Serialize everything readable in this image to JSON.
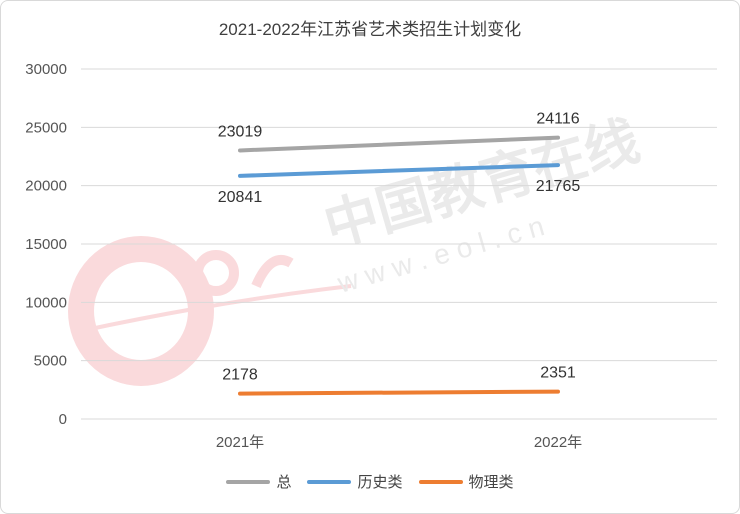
{
  "chart_data": {
    "type": "line",
    "title": "2021-2022年江苏省艺术类招生计划变化",
    "categories": [
      "2021年",
      "2022年"
    ],
    "ylim": [
      0,
      30000
    ],
    "yticks": [
      0,
      5000,
      10000,
      15000,
      20000,
      25000,
      30000
    ],
    "grid": true,
    "legend_position": "bottom",
    "series": [
      {
        "name": "总",
        "values": [
          23019,
          24116
        ],
        "color": "#A5A5A5"
      },
      {
        "name": "历史类",
        "values": [
          20841,
          21765
        ],
        "color": "#5B9BD5"
      },
      {
        "name": "物理类",
        "values": [
          2178,
          2351
        ],
        "color": "#ED7D31"
      }
    ]
  },
  "watermark": {
    "text": "中国教育在线",
    "url": "w w w . e o l . c n",
    "logo": "eol"
  }
}
